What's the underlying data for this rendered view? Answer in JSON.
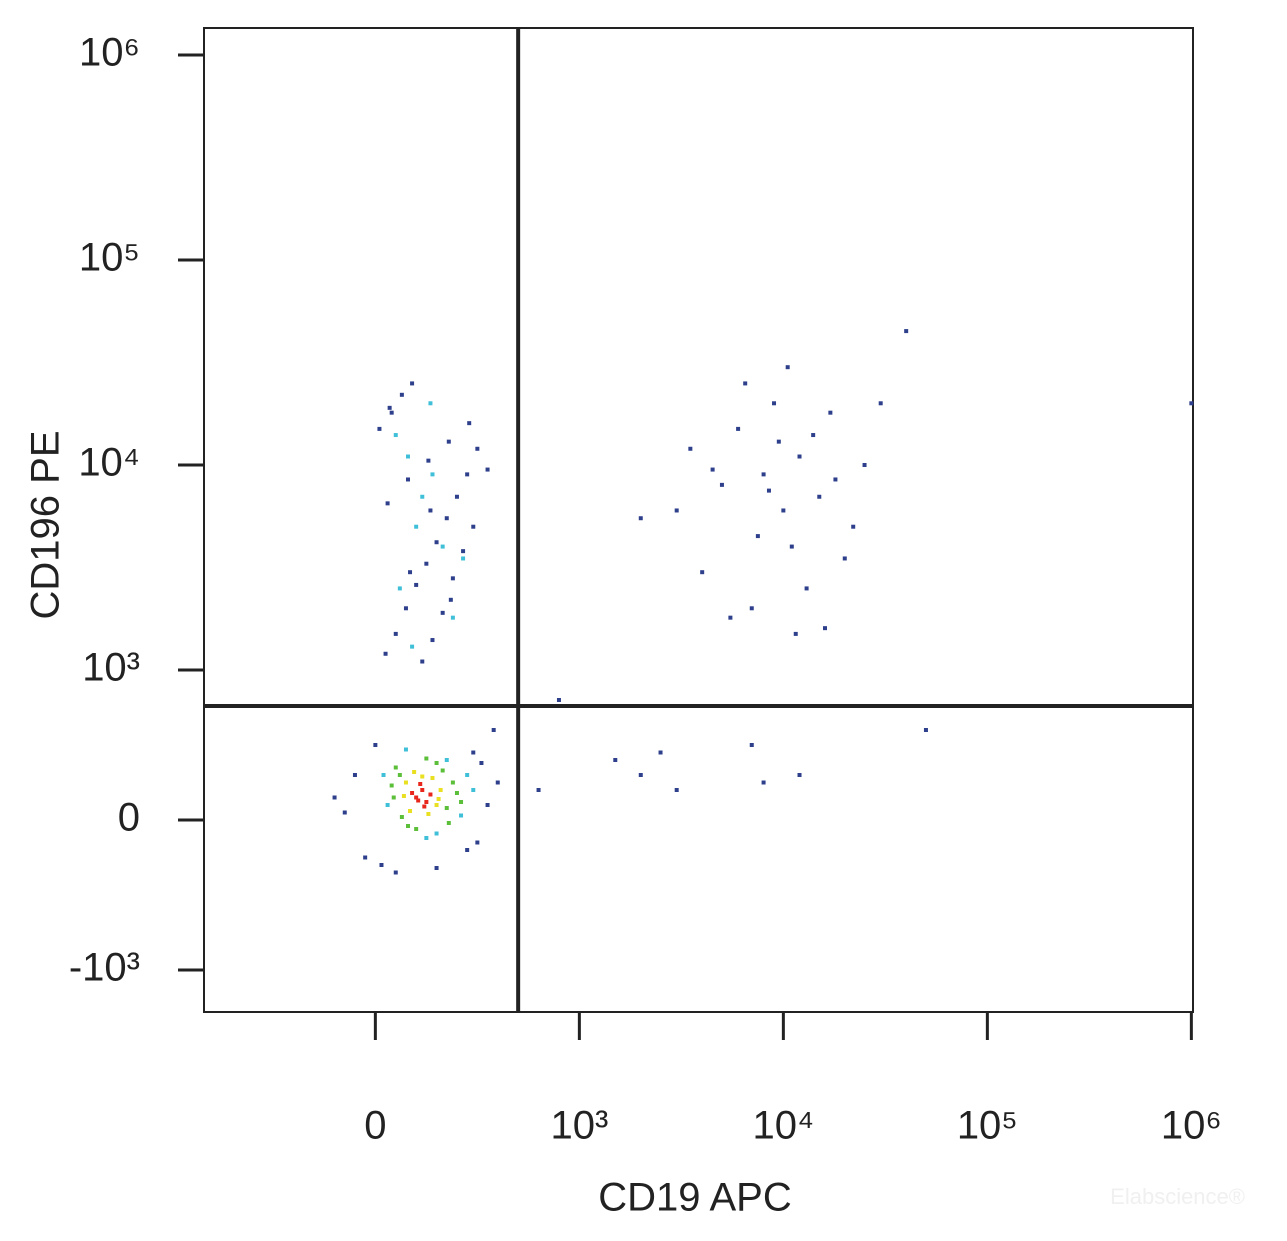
{
  "chart_data": {
    "type": "scatter",
    "x_label": "CD19 APC",
    "y_label": "CD196 PE",
    "watermark": "Elabscience®",
    "xscale": "biexponential",
    "yscale": "biexponential",
    "xlim": [
      -840,
      1000000
    ],
    "ylim": [
      -1320,
      1000000
    ],
    "xticks": [
      0,
      {
        "value": 1000,
        "label": "10³"
      },
      {
        "value": 10000,
        "label": "10⁴"
      },
      {
        "value": 100000,
        "label": "10⁵"
      },
      {
        "value": 1000000,
        "label": "10⁶"
      }
    ],
    "yticks": [
      {
        "value": -1000,
        "label": "-10³"
      },
      0,
      {
        "value": 1000,
        "label": "10³"
      },
      {
        "value": 10000,
        "label": "10⁴"
      },
      {
        "value": 100000,
        "label": "10⁵"
      },
      {
        "value": 1000000,
        "label": "10⁶"
      }
    ],
    "gates": {
      "x": 700,
      "y": 760
    },
    "series": [
      {
        "color": "#2e3f8c",
        "x": [
          -200,
          -100,
          0,
          550,
          600,
          500,
          -50,
          480,
          520,
          30,
          100,
          300,
          450,
          -150,
          580,
          50,
          100,
          150,
          200,
          250,
          300,
          350,
          400,
          450,
          500,
          20,
          80,
          130,
          180,
          230,
          280,
          330,
          380,
          430,
          480,
          60,
          160,
          260,
          360,
          460,
          70,
          170,
          270,
          370,
          550,
          3500,
          4000,
          5000,
          6000,
          7000,
          8000,
          9000,
          10000,
          11000,
          12000,
          13000,
          14000,
          15000,
          17000,
          20000,
          22000,
          25000,
          5500,
          6500,
          7500,
          8500,
          9500,
          3000,
          4500,
          2000,
          16000,
          30000,
          11500,
          10500,
          18000,
          1500,
          2000,
          3000,
          900,
          800,
          2500,
          7000,
          8000,
          12000,
          40000,
          50000,
          1000000
        ],
        "values": [
          150,
          300,
          500,
          100,
          250,
          -150,
          -250,
          450,
          380,
          -300,
          -350,
          -320,
          -200,
          50,
          600,
          1200,
          1500,
          2000,
          2600,
          3300,
          4200,
          5500,
          7000,
          9000,
          12000,
          15000,
          18000,
          22000,
          25000,
          1100,
          1400,
          1900,
          2800,
          3800,
          5000,
          6500,
          8500,
          10500,
          13000,
          16000,
          19000,
          3000,
          6000,
          2200,
          9500,
          12000,
          3000,
          8000,
          15000,
          2000,
          9000,
          20000,
          6000,
          4000,
          11000,
          2500,
          14000,
          7000,
          18000,
          3500,
          5000,
          10000,
          1800,
          25000,
          4500,
          7500,
          13000,
          6000,
          9500,
          5500,
          1600,
          20000,
          1500,
          30000,
          8500,
          400,
          300,
          200,
          800,
          200,
          450,
          500,
          250,
          300,
          45000,
          600,
          20000
        ]
      },
      {
        "color": "#3fc0d8",
        "x": [
          60,
          450,
          420,
          40,
          480,
          150,
          250,
          350,
          300,
          120,
          200,
          280,
          380,
          100,
          430,
          180,
          230,
          330,
          270,
          160
        ],
        "values": [
          100,
          300,
          30,
          300,
          200,
          470,
          -120,
          400,
          -90,
          2500,
          5000,
          9000,
          1800,
          14000,
          3500,
          1300,
          7000,
          4000,
          20000,
          11000
        ]
      },
      {
        "color": "#5cbf3a",
        "x": [
          100,
          380,
          350,
          90,
          130,
          400,
          300,
          120,
          360,
          160,
          80,
          420,
          250,
          200,
          330
        ],
        "values": [
          350,
          250,
          80,
          150,
          20,
          180,
          380,
          300,
          -20,
          -40,
          230,
          120,
          410,
          -60,
          330
        ]
      },
      {
        "color": "#e8e020",
        "x": [
          150,
          300,
          280,
          170,
          320,
          190,
          260,
          230,
          140,
          310
        ],
        "values": [
          250,
          100,
          280,
          60,
          200,
          320,
          40,
          290,
          160,
          140
        ]
      },
      {
        "color": "#e8261c",
        "x": [
          200,
          230,
          250,
          180,
          270,
          220,
          240,
          210
        ],
        "values": [
          150,
          200,
          120,
          180,
          170,
          240,
          90,
          130
        ]
      }
    ]
  }
}
